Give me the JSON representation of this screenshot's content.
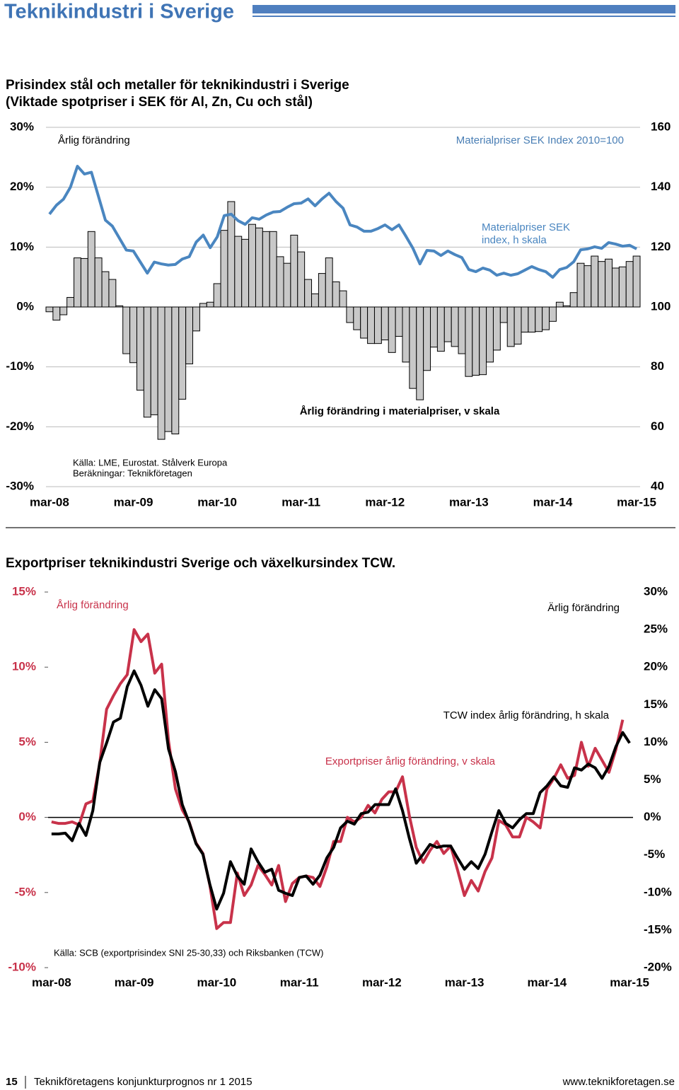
{
  "header": {
    "title": "Teknikindustri i Sverige"
  },
  "chart_data": [
    {
      "type": "bar",
      "title": "Prisindex stål och metaller för teknikindustri i Sverige",
      "subtitle": "(Viktade spotpriser i SEK för Al, Zn, Cu och stål)",
      "y_label": "Årlig förändring",
      "y2_label": "Materialpriser SEK Index 2010=100",
      "notes": [
        "Källa: LME, Eurostat. Stålverk Europa",
        "Beräkningar: Teknikföretagen"
      ],
      "categories": [
        "mar-08",
        null,
        null,
        null,
        null,
        null,
        null,
        null,
        null,
        null,
        null,
        null,
        "mar-09",
        null,
        null,
        null,
        null,
        null,
        null,
        null,
        null,
        null,
        null,
        null,
        "mar-10",
        null,
        null,
        null,
        null,
        null,
        null,
        null,
        null,
        null,
        null,
        null,
        "mar-11",
        null,
        null,
        null,
        null,
        null,
        null,
        null,
        null,
        null,
        null,
        null,
        "mar-12",
        null,
        null,
        null,
        null,
        null,
        null,
        null,
        null,
        null,
        null,
        null,
        "mar-13",
        null,
        null,
        null,
        null,
        null,
        null,
        null,
        null,
        null,
        null,
        null,
        "mar-14",
        null,
        null,
        null,
        null,
        null,
        null,
        null,
        null,
        null,
        null,
        null,
        "mar-15"
      ],
      "series": [
        {
          "name": "Årlig förändring i materialpriser, v skala",
          "type": "bar",
          "color": "#c8c8c8",
          "values": [
            -0.8,
            -2.2,
            -1.3,
            1.6,
            8.2,
            8.1,
            12.6,
            8.2,
            5.9,
            4.6,
            0.2,
            -7.8,
            -9.3,
            -13.9,
            -18.4,
            -18.0,
            -22.1,
            -20.8,
            -21.2,
            -15.4,
            -9.5,
            -4.0,
            0.6,
            0.8,
            3.9,
            12.8,
            17.6,
            11.8,
            11.3,
            13.8,
            13.2,
            12.6,
            12.6,
            8.4,
            7.3,
            12.0,
            9.2,
            4.6,
            2.2,
            5.6,
            8.2,
            4.2,
            2.7,
            -2.6,
            -3.8,
            -5.2,
            -6.1,
            -6.1,
            -5.5,
            -7.6,
            -4.9,
            -9.2,
            -13.6,
            -15.5,
            -10.6,
            -6.7,
            -7.4,
            -5.8,
            -6.6,
            -7.8,
            -11.6,
            -11.4,
            -11.3,
            -9.2,
            -7.2,
            -2.6,
            -6.6,
            -6.2,
            -4.2,
            -4.2,
            -4.1,
            -3.8,
            -2.4,
            0.8,
            0.2,
            2.4,
            7.3,
            6.9,
            8.5,
            7.6,
            8.0,
            6.5,
            6.7,
            7.6,
            8.5
          ]
        },
        {
          "name": "Materialpriser SEK index, h skala",
          "type": "line",
          "axis": "y2",
          "color": "#4a86c0",
          "values": [
            131,
            134,
            136,
            140,
            147,
            144.4,
            145,
            137,
            129,
            127,
            123,
            119,
            118.7,
            115,
            111.3,
            115,
            114.4,
            114,
            114.2,
            116,
            116.8,
            121.7,
            124,
            119.8,
            123.4,
            130.5,
            131,
            128.8,
            127.6,
            129.8,
            129.3,
            130.7,
            131.7,
            131.9,
            133.3,
            134.5,
            134.7,
            136.1,
            133.8,
            136.1,
            138,
            135.2,
            133,
            127.4,
            126.7,
            125.3,
            125.3,
            126.2,
            127.4,
            125.8,
            127.4,
            123.6,
            119.6,
            114.4,
            118.9,
            118.7,
            117.2,
            118.7,
            117.5,
            116.5,
            112.5,
            111.8,
            113,
            112.3,
            110.6,
            111.3,
            110.6,
            111.1,
            112.3,
            113.5,
            112.5,
            111.8,
            109.9,
            112.5,
            113.2,
            115.1,
            119.1,
            119.4,
            120.1,
            119.6,
            121.5,
            121,
            120.3,
            120.6,
            119.4
          ]
        }
      ],
      "ylim": [
        -30,
        30
      ],
      "yticks": [
        {
          "value": -30,
          "label": "-30%"
        },
        {
          "value": -20,
          "label": "-20%"
        },
        {
          "value": -10,
          "label": "-10%"
        },
        {
          "value": 0,
          "label": "0%"
        },
        {
          "value": 10,
          "label": "10%"
        },
        {
          "value": 20,
          "label": "20%"
        },
        {
          "value": 30,
          "label": "30%"
        }
      ],
      "y2lim": [
        40,
        160
      ],
      "y2ticks": [
        40,
        60,
        80,
        100,
        120,
        140,
        160
      ],
      "grid": true
    },
    {
      "type": "line",
      "title": "Exportpriser teknikindustri Sverige och växelkursindex TCW.",
      "y_label": "Årlig förändring",
      "y2_label": "Ärlig förändring",
      "notes": [
        "Källa: SCB (exportprisindex SNI 25-30,33) och Riksbanken (TCW)"
      ],
      "categories": [
        "mar-08",
        null,
        null,
        null,
        null,
        null,
        null,
        null,
        null,
        null,
        null,
        null,
        "mar-09",
        null,
        null,
        null,
        null,
        null,
        null,
        null,
        null,
        null,
        null,
        null,
        "mar-10",
        null,
        null,
        null,
        null,
        null,
        null,
        null,
        null,
        null,
        null,
        null,
        "mar-11",
        null,
        null,
        null,
        null,
        null,
        null,
        null,
        null,
        null,
        null,
        null,
        "mar-12",
        null,
        null,
        null,
        null,
        null,
        null,
        null,
        null,
        null,
        null,
        null,
        "mar-13",
        null,
        null,
        null,
        null,
        null,
        null,
        null,
        null,
        null,
        null,
        null,
        "mar-14",
        null,
        null,
        null,
        null,
        null,
        null,
        null,
        null,
        null,
        null,
        null,
        "mar-15"
      ],
      "series": [
        {
          "name": "Exportpriser årlig förändring, v skala",
          "type": "line",
          "color": "#c8324a",
          "values": [
            -0.3,
            -0.4,
            -0.4,
            -0.3,
            -0.5,
            0.9,
            1.1,
            3.6,
            7.2,
            8.1,
            8.9,
            9.5,
            12.5,
            11.7,
            12.2,
            9.6,
            10.2,
            5.1,
            1.9,
            0.5,
            -0.3,
            -1.7,
            -2.4,
            -4.5,
            -7.4,
            -7.0,
            -7.0,
            -3.7,
            -5.2,
            -4.5,
            -3.2,
            -3.8,
            -4.5,
            -3.2,
            -5.6,
            -4.4,
            -4.0,
            -3.9,
            -4.0,
            -4.6,
            -3.3,
            -1.6,
            -1.6,
            0,
            -0.3,
            0,
            0.8,
            0.3,
            1.2,
            1.7,
            1.7,
            2.7,
            0.1,
            -2.0,
            -3.0,
            -2.2,
            -1.6,
            -2.4,
            -1.9,
            -3.5,
            -5.2,
            -4.2,
            -4.9,
            -3.6,
            -2.7,
            -0.2,
            -0.5,
            -1.3,
            -1.3,
            0,
            -0.3,
            -0.7,
            1.9,
            2.6,
            3.5,
            2.6,
            2.8,
            5.0,
            3.4,
            4.6,
            3.8,
            3.0,
            4.5,
            6.5,
            null
          ]
        },
        {
          "name": "TCW index årlig förändring, h skala",
          "type": "line",
          "axis": "y2",
          "color": "#000000",
          "values": [
            -2.2,
            -2.2,
            -2.1,
            -3.1,
            -0.8,
            -2.4,
            0.9,
            7.3,
            9.9,
            12.7,
            13.2,
            17.4,
            19.5,
            17.6,
            14.8,
            17.0,
            15.8,
            9.1,
            6.1,
            1.7,
            -0.7,
            -3.5,
            -4.9,
            -8.9,
            -12.2,
            -10.1,
            -5.9,
            -7.8,
            -8.9,
            -4.2,
            -5.9,
            -7.3,
            -6.9,
            -9.7,
            -10.1,
            -10.4,
            -8.0,
            -7.8,
            -8.9,
            -7.7,
            -5.4,
            -4.0,
            -1.4,
            -0.5,
            -0.9,
            0.5,
            0.7,
            1.7,
            1.7,
            1.7,
            3.8,
            0.9,
            -2.8,
            -6.1,
            -4.9,
            -3.6,
            -4.0,
            -3.8,
            -3.8,
            -5.4,
            -6.9,
            -5.9,
            -6.8,
            -4.9,
            -1.9,
            0.9,
            -0.8,
            -1.4,
            -0.3,
            0.5,
            0.5,
            3.3,
            4.2,
            5.4,
            4.2,
            4.0,
            6.6,
            6.3,
            7.1,
            6.6,
            5.2,
            6.8,
            9.4,
            11.3,
            9.9
          ]
        }
      ],
      "ylim": [
        -10,
        15
      ],
      "yticks": [
        {
          "value": -10,
          "label": "-10%"
        },
        {
          "value": -5,
          "label": "-5%"
        },
        {
          "value": 0,
          "label": "0%"
        },
        {
          "value": 5,
          "label": "5%"
        },
        {
          "value": 10,
          "label": "10%"
        },
        {
          "value": 15,
          "label": "15%"
        }
      ],
      "y2lim": [
        -20,
        30
      ],
      "y2ticks": [
        {
          "value": -20,
          "label": "-20%"
        },
        {
          "value": -15,
          "label": "-15%"
        },
        {
          "value": -10,
          "label": "-10%"
        },
        {
          "value": -5,
          "label": "-5%"
        },
        {
          "value": 0,
          "label": "0%"
        },
        {
          "value": 5,
          "label": "5%"
        },
        {
          "value": 10,
          "label": "10%"
        },
        {
          "value": 15,
          "label": "15%"
        },
        {
          "value": 20,
          "label": "20%"
        },
        {
          "value": 25,
          "label": "25%"
        },
        {
          "value": 30,
          "label": "30%"
        }
      ],
      "grid": false
    }
  ],
  "footer": {
    "page": "15",
    "text": "Teknikföretagens konjunkturprognos nr 1 2015",
    "url": "www.teknikforetagen.se"
  }
}
